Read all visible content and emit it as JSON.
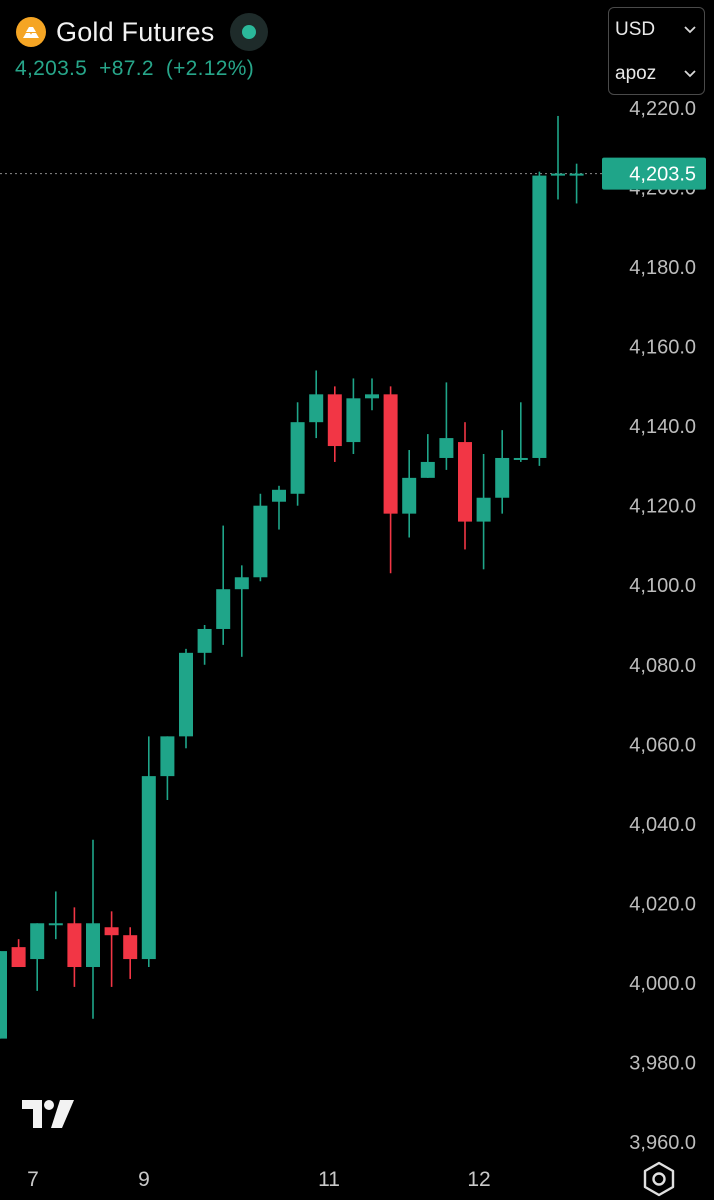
{
  "header": {
    "symbol_name": "Gold Futures",
    "last_price": "4,203.5",
    "change": "+87.2",
    "change_percent": "(+2.12%)"
  },
  "selector": {
    "currency": "USD",
    "unit": "apoz",
    "chevron": "chevron-down-icon"
  },
  "colors": {
    "background": "#000000",
    "up": "#1fa589",
    "down": "#f23645",
    "quote_text": "#27a68a",
    "axis_text": "#bdbdbd"
  },
  "chart_data": {
    "type": "candlestick",
    "price_axis": {
      "ticks": [
        "4,220.0",
        "4,200.0",
        "4,180.0",
        "4,160.0",
        "4,140.0",
        "4,120.0",
        "4,100.0",
        "4,080.0",
        "4,060.0",
        "4,040.0",
        "4,020.0",
        "4,000.0",
        "3,980.0",
        "3,960.0"
      ],
      "range": [
        3955,
        4227
      ]
    },
    "time_axis": {
      "labels": [
        "7",
        "9",
        "11",
        "12"
      ]
    },
    "last_price_label": "4,203.5",
    "last_price_value": 4203.5,
    "candles": [
      {
        "o": 3986,
        "h": 4008,
        "l": 3986,
        "c": 4008
      },
      {
        "o": 4009,
        "h": 4011,
        "l": 4004,
        "c": 4004
      },
      {
        "o": 4006,
        "h": 4015,
        "l": 3998,
        "c": 4015
      },
      {
        "o": 4015,
        "h": 4023,
        "l": 4011,
        "c": 4015
      },
      {
        "o": 4015,
        "h": 4019,
        "l": 3999,
        "c": 4004
      },
      {
        "o": 4004,
        "h": 4036,
        "l": 3991,
        "c": 4015
      },
      {
        "o": 4014,
        "h": 4018,
        "l": 3999,
        "c": 4012
      },
      {
        "o": 4012,
        "h": 4014,
        "l": 4001,
        "c": 4006
      },
      {
        "o": 4006,
        "h": 4062,
        "l": 4004,
        "c": 4052
      },
      {
        "o": 4052,
        "h": 4062,
        "l": 4046,
        "c": 4062
      },
      {
        "o": 4062,
        "h": 4084,
        "l": 4059,
        "c": 4083
      },
      {
        "o": 4083,
        "h": 4090,
        "l": 4080,
        "c": 4089
      },
      {
        "o": 4089,
        "h": 4115,
        "l": 4085,
        "c": 4099
      },
      {
        "o": 4099,
        "h": 4105,
        "l": 4082,
        "c": 4102
      },
      {
        "o": 4102,
        "h": 4123,
        "l": 4101,
        "c": 4120
      },
      {
        "o": 4121,
        "h": 4125,
        "l": 4114,
        "c": 4124
      },
      {
        "o": 4123,
        "h": 4146,
        "l": 4120,
        "c": 4141
      },
      {
        "o": 4141,
        "h": 4154,
        "l": 4137,
        "c": 4148
      },
      {
        "o": 4148,
        "h": 4150,
        "l": 4131,
        "c": 4135
      },
      {
        "o": 4136,
        "h": 4152,
        "l": 4133,
        "c": 4147
      },
      {
        "o": 4147,
        "h": 4152,
        "l": 4144,
        "c": 4148
      },
      {
        "o": 4148,
        "h": 4150,
        "l": 4103,
        "c": 4118
      },
      {
        "o": 4118,
        "h": 4134,
        "l": 4112,
        "c": 4127
      },
      {
        "o": 4127,
        "h": 4138,
        "l": 4127,
        "c": 4131
      },
      {
        "o": 4132,
        "h": 4151,
        "l": 4129,
        "c": 4137
      },
      {
        "o": 4136,
        "h": 4141,
        "l": 4109,
        "c": 4116
      },
      {
        "o": 4116,
        "h": 4133,
        "l": 4104,
        "c": 4122
      },
      {
        "o": 4122,
        "h": 4139,
        "l": 4118,
        "c": 4132
      },
      {
        "o": 4132,
        "h": 4146,
        "l": 4131,
        "c": 4132
      },
      {
        "o": 4132,
        "h": 4204,
        "l": 4130,
        "c": 4203
      },
      {
        "o": 4203,
        "h": 4218,
        "l": 4197,
        "c": 4203.5
      },
      {
        "o": 4203.5,
        "h": 4206,
        "l": 4196,
        "c": 4203.5
      }
    ]
  },
  "footer": {
    "settings_icon": "settings-hexagon-icon",
    "logo_icon": "tradingview-logo-icon"
  }
}
